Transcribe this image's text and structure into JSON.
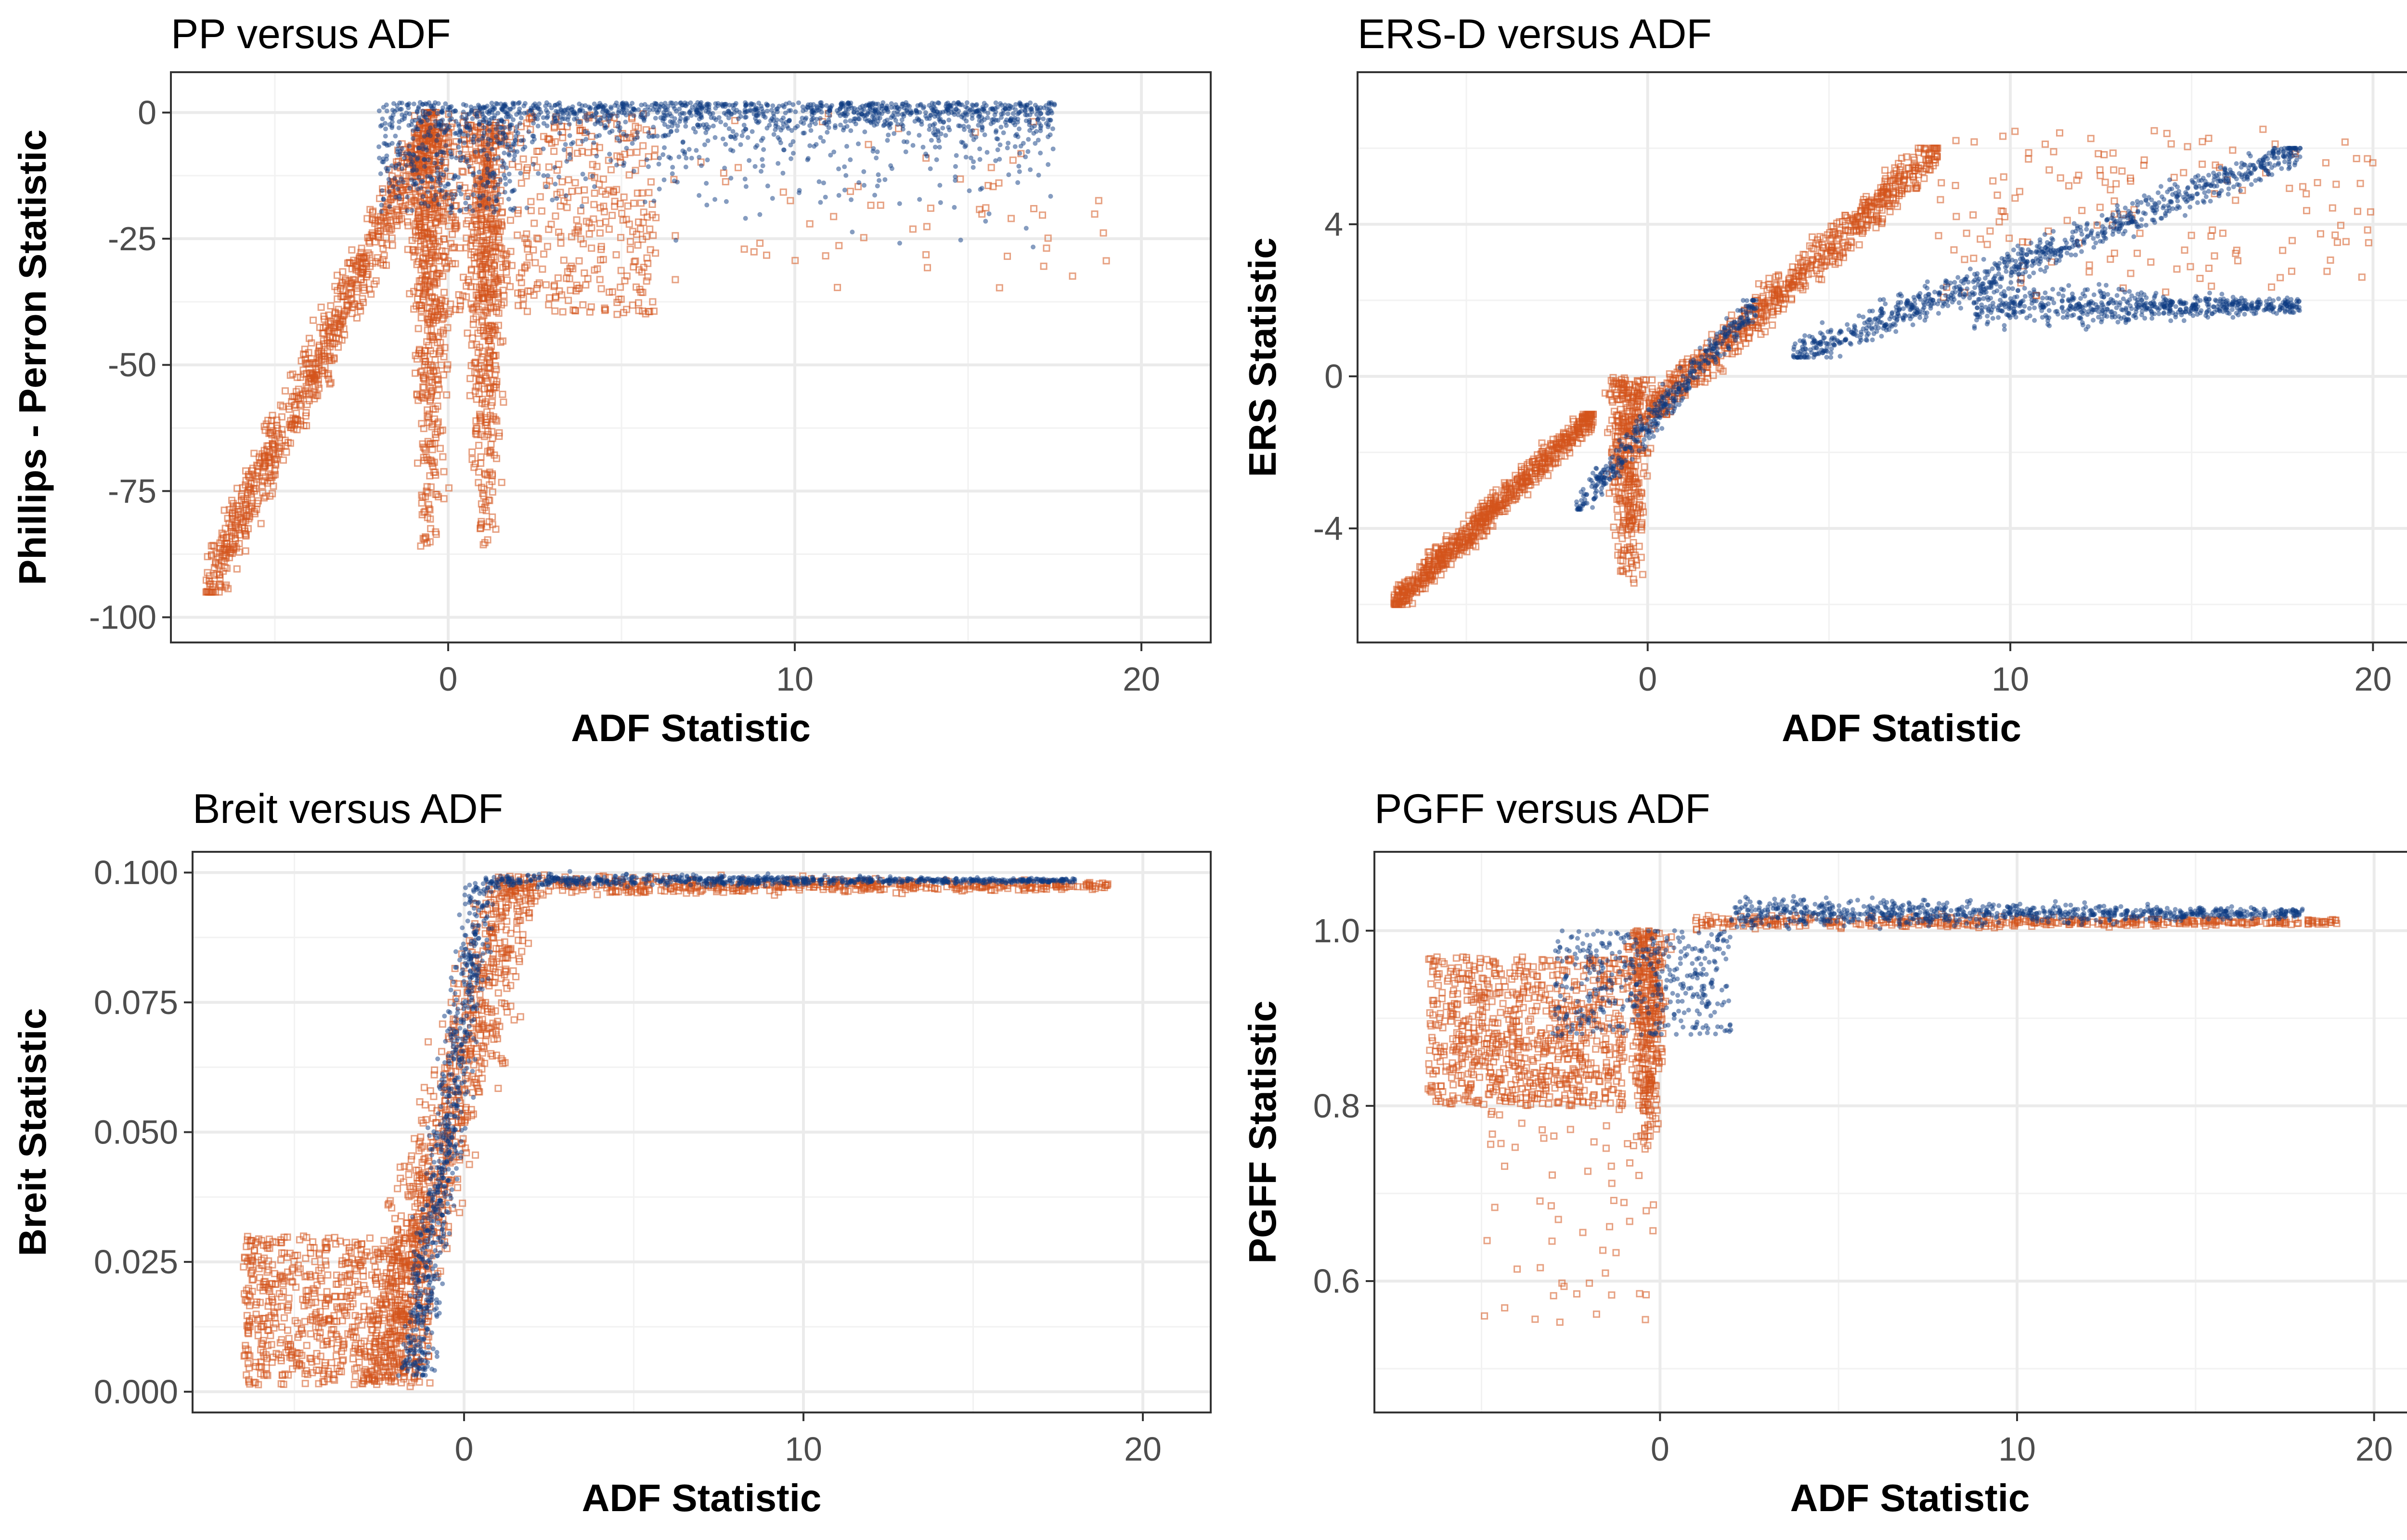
{
  "colors": {
    "series_a": "#0b3a82",
    "series_b": "#d4541c"
  },
  "chart_data": [
    {
      "type": "scatter",
      "title": "PP versus ADF",
      "xlabel": "ADF Statistic",
      "ylabel": "Phillips - Perron Statistic",
      "xlim": [
        -8,
        22
      ],
      "ylim": [
        -105,
        8
      ],
      "xticks": [
        0,
        10,
        20
      ],
      "xtick_labels": [
        "0",
        "10",
        "20"
      ],
      "yticks": [
        -100,
        -75,
        -50,
        -25,
        0
      ],
      "ytick_labels": [
        "-100",
        "-75",
        "-50",
        "-25",
        "0"
      ],
      "series": [
        {
          "name": "series_a",
          "marker": "point",
          "clusters": [
            {
              "x": [
                -2,
                17.5
              ],
              "y": [
                -35,
                2
              ],
              "shape": "fan",
              "n": 1400
            },
            {
              "x": [
                -2,
                2
              ],
              "y": [
                -20,
                2
              ],
              "shape": "box",
              "n": 300
            }
          ]
        },
        {
          "name": "series_b",
          "marker": "square",
          "clusters": [
            {
              "x": [
                -7,
                -0.3
              ],
              "y": [
                -95,
                0
              ],
              "shape": "diagonal",
              "n": 800
            },
            {
              "x": [
                -1.5,
                0.5
              ],
              "y": [
                -88,
                -2
              ],
              "shape": "band",
              "n": 500
            },
            {
              "x": [
                0.2,
                2
              ],
              "y": [
                -88,
                -2
              ],
              "shape": "band",
              "n": 500
            },
            {
              "x": [
                -1,
                6
              ],
              "y": [
                -40,
                0
              ],
              "shape": "box",
              "n": 500
            },
            {
              "x": [
                6,
                19
              ],
              "y": [
                -35,
                0
              ],
              "shape": "box",
              "n": 60
            }
          ]
        }
      ]
    },
    {
      "type": "scatter",
      "title": "ERS-D versus ADF",
      "xlabel": "ADF Statistic",
      "ylabel": "ERS Statistic",
      "xlim": [
        -8,
        22
      ],
      "ylim": [
        -7,
        8
      ],
      "xticks": [
        0,
        10,
        20
      ],
      "xtick_labels": [
        "0",
        "10",
        "20"
      ],
      "yticks": [
        -4,
        0,
        4
      ],
      "ytick_labels": [
        "-4",
        "0",
        "4"
      ],
      "series": [
        {
          "name": "series_a",
          "marker": "point",
          "clusters": [
            {
              "x": [
                -2,
                3
              ],
              "y": [
                -3.5,
                2
              ],
              "shape": "diagonal",
              "n": 400
            },
            {
              "x": [
                4,
                18
              ],
              "y": [
                0.5,
                6
              ],
              "shape": "diagonal",
              "n": 900
            },
            {
              "x": [
                9,
                18
              ],
              "y": [
                1.2,
                2.5
              ],
              "shape": "band_h",
              "n": 600
            }
          ]
        },
        {
          "name": "series_b",
          "marker": "square",
          "clusters": [
            {
              "x": [
                -7,
                -1.5
              ],
              "y": [
                -6,
                -1
              ],
              "shape": "diagonal",
              "n": 700
            },
            {
              "x": [
                -1.5,
                0.5
              ],
              "y": [
                -5.5,
                0
              ],
              "shape": "band",
              "n": 400
            },
            {
              "x": [
                0,
                8
              ],
              "y": [
                -1,
                6
              ],
              "shape": "diagonal",
              "n": 700
            },
            {
              "x": [
                8,
                20
              ],
              "y": [
                2,
                6.5
              ],
              "shape": "box",
              "n": 150
            }
          ]
        }
      ]
    },
    {
      "type": "scatter",
      "title": "Breit versus ADF",
      "xlabel": "ADF Statistic",
      "ylabel": "Breit Statistic",
      "xlim": [
        -8,
        22
      ],
      "ylim": [
        -0.004,
        0.104
      ],
      "xticks": [
        0,
        10,
        20
      ],
      "xtick_labels": [
        "0",
        "10",
        "20"
      ],
      "yticks": [
        0,
        0.025,
        0.05,
        0.075,
        0.1
      ],
      "ytick_labels": [
        "0.000",
        "0.025",
        "0.050",
        "0.075",
        "0.100"
      ],
      "series": [
        {
          "name": "series_a",
          "marker": "point",
          "clusters": [
            {
              "x": [
                -1.5,
                0.5
              ],
              "y": [
                0.003,
                0.098
              ],
              "shape": "sigmoid",
              "n": 700
            },
            {
              "x": [
                0.5,
                18
              ],
              "y": [
                0.097,
                0.1
              ],
              "shape": "band_h",
              "n": 700
            }
          ]
        },
        {
          "name": "series_b",
          "marker": "square",
          "clusters": [
            {
              "x": [
                -6.5,
                -1
              ],
              "y": [
                0.001,
                0.03
              ],
              "shape": "box",
              "n": 700
            },
            {
              "x": [
                -2.5,
                1.5
              ],
              "y": [
                0.002,
                0.098
              ],
              "shape": "sigmoid",
              "n": 900
            },
            {
              "x": [
                1,
                19
              ],
              "y": [
                0.095,
                0.1
              ],
              "shape": "band_h",
              "n": 500
            }
          ]
        }
      ]
    },
    {
      "type": "scatter",
      "title": "PGFF versus ADF",
      "xlabel": "ADF Statistic",
      "ylabel": "PGFF Statistic",
      "xlim": [
        -8,
        22
      ],
      "ylim": [
        0.45,
        1.09
      ],
      "xticks": [
        0,
        10,
        20
      ],
      "xtick_labels": [
        "0",
        "10",
        "20"
      ],
      "yticks": [
        0.6,
        0.8,
        1.0
      ],
      "ytick_labels": [
        "0.6",
        "0.8",
        "1.0"
      ],
      "series": [
        {
          "name": "series_a",
          "marker": "point",
          "clusters": [
            {
              "x": [
                -3,
                2
              ],
              "y": [
                0.88,
                1.0
              ],
              "shape": "box",
              "n": 400
            },
            {
              "x": [
                2,
                18
              ],
              "y": [
                1.0,
                1.04
              ],
              "shape": "band_h",
              "n": 800
            }
          ]
        },
        {
          "name": "series_b",
          "marker": "square",
          "clusters": [
            {
              "x": [
                -6.5,
                -1
              ],
              "y": [
                0.8,
                0.97
              ],
              "shape": "box",
              "n": 800
            },
            {
              "x": [
                -1.2,
                0.5
              ],
              "y": [
                0.75,
                1.0
              ],
              "shape": "band",
              "n": 400
            },
            {
              "x": [
                1,
                19
              ],
              "y": [
                1.0,
                1.02
              ],
              "shape": "band_h",
              "n": 400
            },
            {
              "x": [
                -5,
                0
              ],
              "y": [
                0.55,
                0.8
              ],
              "shape": "box",
              "n": 60
            }
          ]
        }
      ]
    }
  ]
}
